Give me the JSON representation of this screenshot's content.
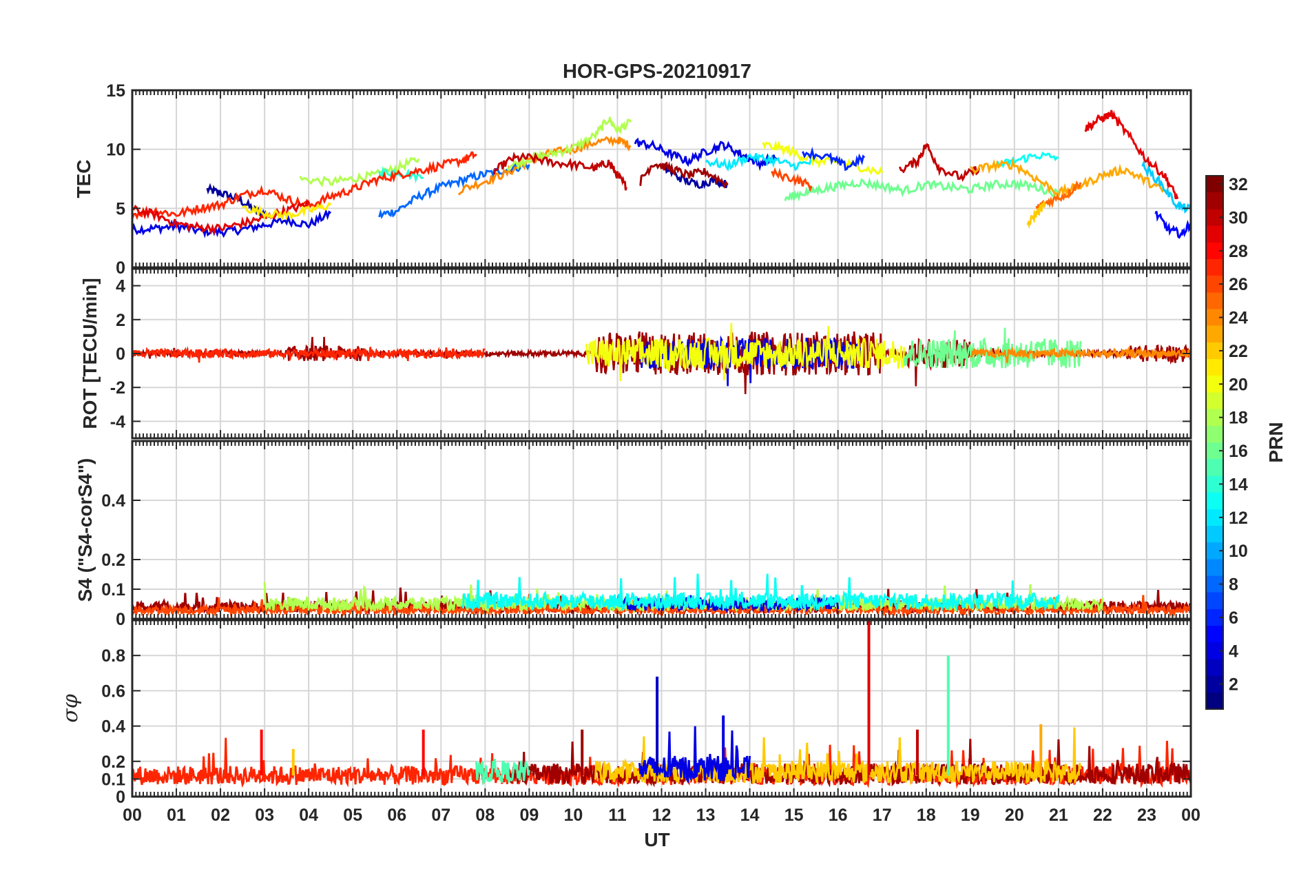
{
  "chart_data": {
    "type": "line",
    "title": "HOR-GPS-20210917",
    "xlabel": "UT",
    "x_ticks": [
      "00",
      "01",
      "02",
      "03",
      "04",
      "05",
      "06",
      "07",
      "08",
      "09",
      "10",
      "11",
      "12",
      "13",
      "14",
      "15",
      "16",
      "17",
      "18",
      "19",
      "20",
      "21",
      "22",
      "23",
      "00"
    ],
    "x_range_hours": [
      0,
      24
    ],
    "grid": true,
    "colormap": "jet",
    "colorbar": {
      "label": "PRN",
      "range": [
        1,
        32
      ],
      "ticks": [
        "2",
        "4",
        "6",
        "8",
        "10",
        "12",
        "14",
        "16",
        "18",
        "20",
        "22",
        "24",
        "26",
        "28",
        "30",
        "32"
      ],
      "placement": "right"
    },
    "panels": [
      {
        "id": "tec",
        "ylabel": "TEC",
        "ylim": [
          0,
          15
        ],
        "y_ticks": [
          "0",
          "5",
          "10",
          "15"
        ],
        "series": [
          {
            "prn": 2,
            "x": [
              1.7,
              2.0,
              2.4,
              2.8,
              3.1
            ],
            "y": [
              6.6,
              6.3,
              5.8,
              4.8,
              4.3
            ]
          },
          {
            "prn": 4,
            "x": [
              0.0,
              0.5,
              1.0,
              1.5,
              2.0,
              2.5,
              3.0,
              3.5,
              4.0,
              4.5
            ],
            "y": [
              3.2,
              3.3,
              3.5,
              3.1,
              3.0,
              3.2,
              3.6,
              4.0,
              3.6,
              4.6
            ]
          },
          {
            "prn": 8,
            "x": [
              5.6,
              6.0,
              6.5,
              7.0,
              7.5,
              8.0,
              8.5,
              9.0
            ],
            "y": [
              4.4,
              4.8,
              6.0,
              6.8,
              7.4,
              7.9,
              8.3,
              8.7
            ]
          },
          {
            "prn": 18,
            "x": [
              3.8,
              4.5,
              5.0,
              5.5,
              6.0,
              6.5
            ],
            "y": [
              7.5,
              7.2,
              7.5,
              7.8,
              8.4,
              9.2
            ]
          },
          {
            "prn": 14,
            "x": [
              5.6,
              6.0,
              6.6
            ],
            "y": [
              8.0,
              8.1,
              7.6
            ]
          },
          {
            "prn": 24,
            "x": [
              7.4,
              8.0,
              8.5,
              9.0,
              9.5,
              10.0,
              10.5,
              11.0,
              11.3
            ],
            "y": [
              6.5,
              7.3,
              8.0,
              9.0,
              9.7,
              10.0,
              10.6,
              10.8,
              10.3
            ]
          },
          {
            "prn": 18,
            "x": [
              8.5,
              9.0,
              9.5,
              10.0,
              10.5,
              10.8,
              11.0,
              11.3
            ],
            "y": [
              8.5,
              9.2,
              9.6,
              10.1,
              11.2,
              12.6,
              11.6,
              12.3
            ]
          },
          {
            "prn": 30,
            "x": [
              8.2,
              8.6,
              9.0,
              9.5,
              10.0,
              10.5,
              10.8,
              11.0,
              11.2
            ],
            "y": [
              8.1,
              9.2,
              9.3,
              8.9,
              8.7,
              8.4,
              8.9,
              7.8,
              6.8
            ]
          },
          {
            "prn": 27,
            "x": [
              0.0,
              0.5,
              1.0,
              1.5,
              2.0,
              2.5,
              3.0,
              3.5,
              4.0,
              4.5,
              5.0,
              5.5,
              6.0,
              6.5,
              7.0,
              7.5,
              7.8
            ],
            "y": [
              4.5,
              4.8,
              4.5,
              5.0,
              5.3,
              6.1,
              6.6,
              5.8,
              5.2,
              6.0,
              6.6,
              7.4,
              7.8,
              8.2,
              8.6,
              9.1,
              9.6
            ]
          },
          {
            "prn": 29,
            "x": [
              0.0,
              0.5,
              1.0,
              1.5,
              2.0,
              2.5,
              3.0,
              3.5,
              4.0
            ],
            "y": [
              4.9,
              4.5,
              3.7,
              3.4,
              3.3,
              3.7,
              4.2,
              4.8,
              5.4
            ]
          },
          {
            "prn": 21,
            "x": [
              2.5,
              3.0,
              3.5,
              4.0,
              4.5
            ],
            "y": [
              5.1,
              4.6,
              4.4,
              4.8,
              5.3
            ]
          },
          {
            "prn": 4,
            "x": [
              11.4,
              11.8,
              12.2,
              12.6,
              13.0,
              13.4,
              13.8,
              14.2,
              14.6
            ],
            "y": [
              10.6,
              10.3,
              9.6,
              9.0,
              9.8,
              10.4,
              9.6,
              8.8,
              9.3
            ]
          },
          {
            "prn": 2,
            "x": [
              12.0,
              12.4,
              12.8,
              13.2,
              13.5
            ],
            "y": [
              8.6,
              7.6,
              7.0,
              7.4,
              7.0
            ]
          },
          {
            "prn": 31,
            "x": [
              11.5,
              11.8,
              12.2,
              12.6,
              13.0,
              13.5
            ],
            "y": [
              7.2,
              8.8,
              8.4,
              7.8,
              8.1,
              7.0
            ]
          },
          {
            "prn": 12,
            "x": [
              13.0,
              13.5,
              14.0,
              14.5,
              15.0,
              15.5
            ],
            "y": [
              9.0,
              8.6,
              9.4,
              9.1,
              8.6,
              9.0
            ]
          },
          {
            "prn": 20,
            "x": [
              14.3,
              14.8,
              15.2,
              15.6,
              16.0,
              16.5,
              17.0
            ],
            "y": [
              10.4,
              10.0,
              9.4,
              8.9,
              9.0,
              8.5,
              8.0
            ]
          },
          {
            "prn": 16,
            "x": [
              14.8,
              15.2,
              15.6,
              16.0,
              16.5,
              17.0,
              17.5,
              18.0,
              18.5,
              19.0,
              19.5,
              20.0,
              20.5,
              21.0
            ],
            "y": [
              5.8,
              6.3,
              6.6,
              6.9,
              7.2,
              6.9,
              6.5,
              7.0,
              6.8,
              6.6,
              7.0,
              7.1,
              6.8,
              6.2
            ]
          },
          {
            "prn": 6,
            "x": [
              15.2,
              15.8,
              16.2,
              16.6
            ],
            "y": [
              9.8,
              9.3,
              8.5,
              9.3
            ]
          },
          {
            "prn": 26,
            "x": [
              14.5,
              15.0,
              15.4
            ],
            "y": [
              8.0,
              7.5,
              6.9
            ]
          },
          {
            "prn": 30,
            "x": [
              17.4,
              17.8,
              18.0,
              18.3,
              18.8,
              19.2
            ],
            "y": [
              8.2,
              9.0,
              10.4,
              8.4,
              7.6,
              8.4
            ]
          },
          {
            "prn": 13,
            "x": [
              19.6,
              20.0,
              20.5,
              21.0
            ],
            "y": [
              8.6,
              9.0,
              9.5,
              9.3
            ]
          },
          {
            "prn": 23,
            "x": [
              19.0,
              19.5,
              20.0,
              20.5,
              21.0,
              21.5,
              22.0,
              22.5,
              23.0,
              23.5
            ],
            "y": [
              8.2,
              8.6,
              8.7,
              7.5,
              6.3,
              6.9,
              7.8,
              8.3,
              7.3,
              6.2
            ]
          },
          {
            "prn": 25,
            "x": [
              20.5,
              20.8,
              21.2,
              21.5
            ],
            "y": [
              5.0,
              5.6,
              6.2,
              7.2
            ]
          },
          {
            "prn": 29,
            "x": [
              21.6,
              21.9,
              22.2,
              22.6,
              23.0,
              23.4,
              23.7
            ],
            "y": [
              11.7,
              12.5,
              13.0,
              11.1,
              9.1,
              7.8,
              5.8
            ]
          },
          {
            "prn": 5,
            "x": [
              23.2,
              23.5,
              23.8,
              24.0
            ],
            "y": [
              4.6,
              3.2,
              2.8,
              3.8
            ]
          },
          {
            "prn": 11,
            "x": [
              22.9,
              23.3,
              23.7,
              24.0
            ],
            "y": [
              8.6,
              7.2,
              5.2,
              4.9
            ]
          },
          {
            "prn": 22,
            "x": [
              20.3,
              20.5,
              20.7
            ],
            "y": [
              3.6,
              4.6,
              5.4
            ]
          }
        ]
      },
      {
        "id": "rot",
        "ylabel": "ROT [TECU/min]",
        "ylim": [
          -5,
          5
        ],
        "y_ticks": [
          "-4",
          "-2",
          "0",
          "2",
          "4"
        ],
        "series": [
          {
            "prn": 31,
            "amp_profile": "low_then_storm",
            "hours": [
              0,
              24
            ]
          },
          {
            "prn": 4,
            "amp_profile": "spiky",
            "hours": [
              11.5,
              16.5
            ]
          },
          {
            "prn": 20,
            "amp_profile": "spiky",
            "hours": [
              10.3,
              17.5
            ]
          },
          {
            "prn": 16,
            "amp_profile": "spiky",
            "hours": [
              17.5,
              21.5
            ]
          },
          {
            "prn": 24,
            "amp_profile": "low",
            "hours": [
              19.0,
              24.0
            ]
          },
          {
            "prn": 27,
            "amp_profile": "low",
            "hours": [
              0.0,
              8.0
            ]
          }
        ]
      },
      {
        "id": "s4",
        "ylabel": "S4 (\"S4-corS4\")",
        "ylim": [
          0,
          0.6
        ],
        "y_ticks": [
          "0",
          "0.1",
          "0.2",
          "0.4"
        ],
        "series": [
          {
            "prn": 31,
            "level": 0.04,
            "hours": [
              0,
              24
            ]
          },
          {
            "prn": 26,
            "level": 0.03,
            "hours": [
              0,
              24
            ]
          },
          {
            "prn": 18,
            "level": 0.05,
            "hours": [
              3,
              22
            ]
          },
          {
            "prn": 4,
            "level": 0.05,
            "hours": [
              11,
              16
            ]
          },
          {
            "prn": 13,
            "level": 0.06,
            "hours": [
              7.5,
              21
            ]
          }
        ]
      },
      {
        "id": "sigma_phi",
        "ylabel": "σφ",
        "ylim": [
          0,
          1.0
        ],
        "y_ticks": [
          "0",
          "0.1",
          "0.2",
          "0.4",
          "0.6",
          "0.8"
        ],
        "series": [
          {
            "prn": 27,
            "level": 0.12,
            "hours": [
              0,
              24
            ]
          },
          {
            "prn": 31,
            "level": 0.13,
            "hours": [
              8.5,
              24
            ]
          },
          {
            "prn": 22,
            "level": 0.14,
            "hours": [
              10.5,
              21.5
            ]
          },
          {
            "prn": 4,
            "level": 0.16,
            "hours": [
              11.5,
              14
            ]
          },
          {
            "prn": 15,
            "level": 0.14,
            "hours": [
              7.8,
              9.0
            ]
          }
        ],
        "spikes": [
          {
            "x": 2.93,
            "y": 0.38,
            "prn": 28
          },
          {
            "x": 3.65,
            "y": 0.27,
            "prn": 22
          },
          {
            "x": 6.6,
            "y": 0.38,
            "prn": 28
          },
          {
            "x": 10.2,
            "y": 0.38,
            "prn": 31
          },
          {
            "x": 11.9,
            "y": 0.68,
            "prn": 3
          },
          {
            "x": 13.4,
            "y": 0.46,
            "prn": 4
          },
          {
            "x": 16.7,
            "y": 1.0,
            "prn": 29
          },
          {
            "x": 17.8,
            "y": 0.38,
            "prn": 30
          },
          {
            "x": 18.5,
            "y": 0.8,
            "prn": 15
          },
          {
            "x": 20.6,
            "y": 0.41,
            "prn": 23
          }
        ]
      }
    ]
  }
}
